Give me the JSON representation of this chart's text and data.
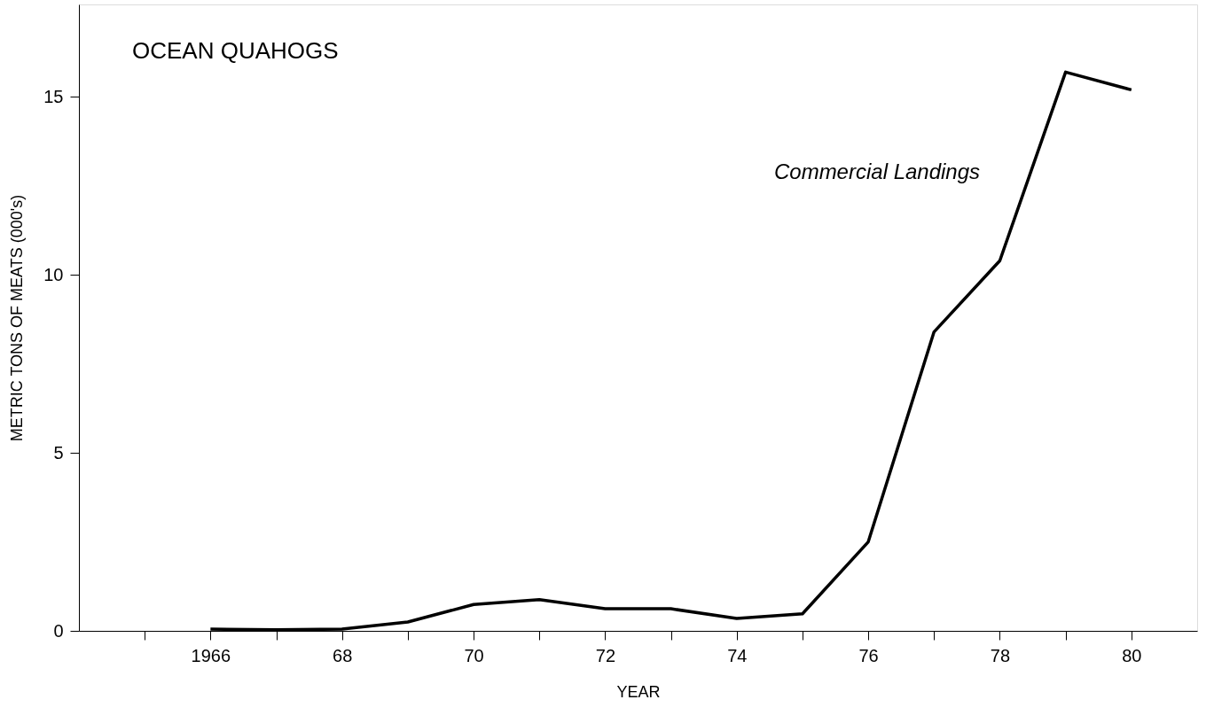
{
  "chart_data": {
    "type": "line",
    "title": "OCEAN QUAHOGS",
    "xlabel": "YEAR",
    "ylabel": "METRIC TONS OF MEATS (000's)",
    "x": [
      1966,
      1967,
      1968,
      1969,
      1970,
      1971,
      1972,
      1973,
      1974,
      1975,
      1976,
      1977,
      1978,
      1979,
      1980
    ],
    "series": [
      {
        "color": "#000000",
        "values": [
          0.05,
          0.03,
          0.05,
          0.25,
          0.74,
          0.88,
          0.62,
          0.62,
          0.35,
          0.48,
          2.5,
          8.4,
          10.4,
          15.7,
          15.2
        ]
      }
    ],
    "xlim": [
      1964,
      1981
    ],
    "ylim": [
      0,
      17.6
    ],
    "xticks": [
      {
        "value": 1965,
        "label": null
      },
      1966,
      {
        "value": 1967,
        "label": null
      },
      {
        "value": 1968,
        "label": "68"
      },
      {
        "value": 1969,
        "label": null
      },
      {
        "value": 1970,
        "label": "70"
      },
      {
        "value": 1971,
        "label": null
      },
      {
        "value": 1972,
        "label": "72"
      },
      {
        "value": 1973,
        "label": null
      },
      {
        "value": 1974,
        "label": "74"
      },
      {
        "value": 1975,
        "label": null
      },
      {
        "value": 1976,
        "label": "76"
      },
      {
        "value": 1977,
        "label": null
      },
      {
        "value": 1978,
        "label": "78"
      },
      {
        "value": 1979,
        "label": null
      },
      {
        "value": 1980,
        "label": "80"
      }
    ],
    "yticks": [
      0,
      5,
      10,
      15
    ],
    "annotations": [
      "Commercial Landings"
    ],
    "grid": false,
    "marker": "none",
    "line_style": "solid"
  }
}
